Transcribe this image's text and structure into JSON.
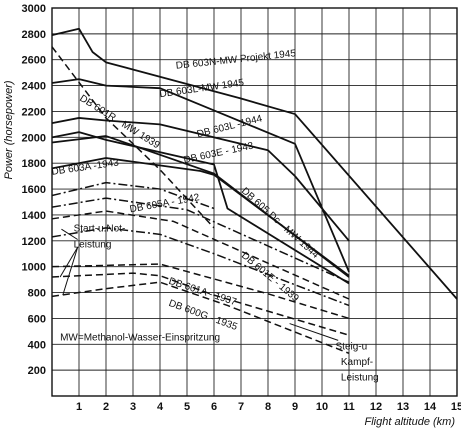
{
  "chart_data": {
    "type": "line",
    "title": "",
    "xlabel": "Flight altitude (km)",
    "ylabel": "Power (horsepower)",
    "xlim": [
      0,
      15
    ],
    "ylim": [
      0,
      3000
    ],
    "grid": true,
    "x_ticks": [
      1,
      2,
      3,
      4,
      5,
      6,
      7,
      8,
      9,
      10,
      11,
      12,
      13,
      14,
      15
    ],
    "y_ticks": [
      200,
      400,
      600,
      800,
      1000,
      1200,
      1400,
      1600,
      1800,
      2000,
      2200,
      2400,
      2600,
      2800,
      3000
    ],
    "series": [
      {
        "name": "DB 603 N-MW Projekt 1945",
        "style": "solid",
        "x": [
          0,
          1,
          1.5,
          2,
          7,
          9,
          15
        ],
        "y": [
          2790,
          2840,
          2660,
          2580,
          2300,
          2180,
          750
        ]
      },
      {
        "name": "DB 603 L-MW 1945",
        "style": "solid",
        "x": [
          0,
          1,
          2,
          4,
          9,
          11
        ],
        "y": [
          2420,
          2450,
          2400,
          2380,
          1950,
          960
        ]
      },
      {
        "name": "DB 603 L-1944",
        "style": "solid",
        "x": [
          0,
          1,
          2,
          4,
          8,
          9,
          11
        ],
        "y": [
          2110,
          2150,
          2130,
          2100,
          1900,
          1700,
          1200
        ]
      },
      {
        "name": "DB 601 R-MW 1939",
        "style": "dashed",
        "x": [
          0,
          2,
          4,
          6
        ],
        "y": [
          2700,
          2150,
          1750,
          1300
        ]
      },
      {
        "name": "DB 603 E-1943",
        "style": "solid",
        "x": [
          0,
          1,
          2,
          6,
          6.5,
          11
        ],
        "y": [
          2000,
          2040,
          1980,
          1790,
          1450,
          870
        ]
      },
      {
        "name": "DB 603 A-1943",
        "style": "solid",
        "x": [
          0,
          2,
          5.5,
          6,
          11
        ],
        "y": [
          1760,
          1840,
          1740,
          1710,
          930
        ]
      },
      {
        "name": "DB 605 Dc-MW 1944",
        "style": "solid",
        "x": [
          0,
          2,
          6,
          11
        ],
        "y": [
          1960,
          2010,
          1720,
          920
        ]
      },
      {
        "name": "DB 605 A-1942",
        "style": "dashdot",
        "x": [
          0,
          2,
          5,
          11
        ],
        "y": [
          1460,
          1530,
          1440,
          880
        ]
      },
      {
        "name": "DB 601 E-1939",
        "style": "dashed",
        "x": [
          0,
          2,
          4.5,
          11
        ],
        "y": [
          1370,
          1430,
          1350,
          750
        ]
      },
      {
        "name": "DB 601 A-1937",
        "style": "dashed",
        "x": [
          0,
          2,
          4,
          8,
          11
        ],
        "y": [
          1000,
          1010,
          1020,
          790,
          600
        ]
      },
      {
        "name": "DB 600 G-1935",
        "style": "dashed",
        "x": [
          0,
          2,
          4,
          6.5,
          11
        ],
        "y": [
          770,
          830,
          880,
          700,
          330
        ]
      },
      {
        "name": "",
        "style": "dashdot",
        "x": [
          0,
          2,
          4,
          6,
          11
        ],
        "y": [
          1230,
          1300,
          1250,
          1100,
          700
        ]
      },
      {
        "name": "",
        "style": "dashdot",
        "x": [
          0,
          2,
          4,
          6
        ],
        "y": [
          1550,
          1650,
          1600,
          1450
        ]
      },
      {
        "name": "",
        "style": "dashed",
        "x": [
          0,
          3,
          4,
          6,
          11
        ],
        "y": [
          920,
          950,
          930,
          780,
          470
        ]
      }
    ],
    "labels": [
      {
        "text": "DB 603N-MW Projekt 1945",
        "x": 4.6,
        "y": 2530,
        "rotate": -6
      },
      {
        "text": "DB 603L-MW 1945",
        "x": 4.0,
        "y": 2310,
        "rotate": -8
      },
      {
        "text": "DB 601R - MW 1939",
        "x": 1.0,
        "y": 2290,
        "rotate": 32
      },
      {
        "text": "DB 603L -1944",
        "x": 5.4,
        "y": 2000,
        "rotate": -14
      },
      {
        "text": "DB 603E - 1943",
        "x": 4.9,
        "y": 1800,
        "rotate": -12
      },
      {
        "text": "DB 603A -1943",
        "x": 0.0,
        "y": 1710,
        "rotate": -8
      },
      {
        "text": "DB 605A - 1942",
        "x": 2.9,
        "y": 1420,
        "rotate": -10
      },
      {
        "text": "DB 605 Dc - MW 1944",
        "x": 7.0,
        "y": 1580,
        "rotate": 42
      },
      {
        "text": "DB 601A - 1937",
        "x": 4.3,
        "y": 870,
        "rotate": 18
      },
      {
        "text": "DB 601E - 1939",
        "x": 7.0,
        "y": 1080,
        "rotate": 40
      },
      {
        "text": "DB 600G - 1935",
        "x": 4.3,
        "y": 700,
        "rotate": 20
      }
    ],
    "annotations": [
      {
        "text": "Start-u.Not-",
        "x": 0.8,
        "y": 1270
      },
      {
        "text": "Leistung",
        "x": 0.8,
        "y": 1150
      },
      {
        "text": "MW=Methanol-Wasser-Einspritzung",
        "x": 0.3,
        "y": 430
      },
      {
        "text": "Steig-u",
        "x": 10.5,
        "y": 360
      },
      {
        "text": "Kampf-",
        "x": 10.7,
        "y": 240
      },
      {
        "text": "Leistung",
        "x": 10.7,
        "y": 120
      }
    ]
  }
}
